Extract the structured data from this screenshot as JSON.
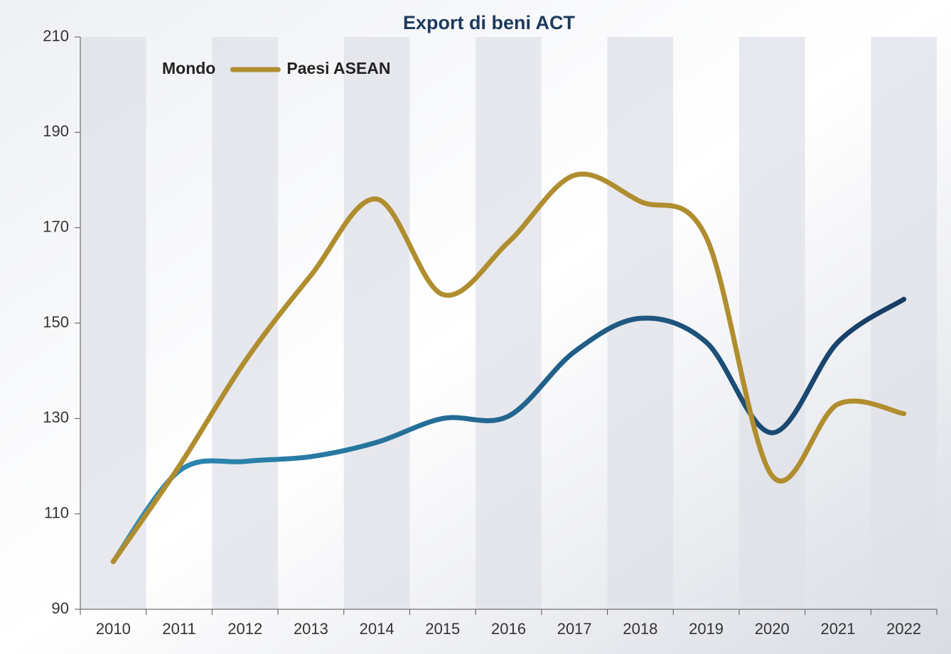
{
  "chart_data": {
    "type": "line",
    "title": "Export di beni ACT",
    "categories": [
      "2010",
      "2011",
      "2012",
      "2013",
      "2014",
      "2015",
      "2016",
      "2017",
      "2018",
      "2019",
      "2020",
      "2021",
      "2022"
    ],
    "series": [
      {
        "name": "Mondo",
        "color": "#1b4f7a",
        "values": [
          100,
          119,
          121,
          122,
          125,
          130,
          130.5,
          144,
          151,
          146,
          127,
          146,
          155
        ]
      },
      {
        "name": "Paesi ASEAN",
        "color": "#b08d2e",
        "values": [
          100,
          120,
          142,
          160,
          176,
          156,
          167,
          181,
          175.5,
          168,
          118,
          133,
          131
        ]
      }
    ],
    "ylim": [
      90,
      210
    ],
    "yticks": [
      90,
      110,
      130,
      150,
      170,
      190,
      210
    ],
    "legend": "top-left",
    "smooth": true
  }
}
